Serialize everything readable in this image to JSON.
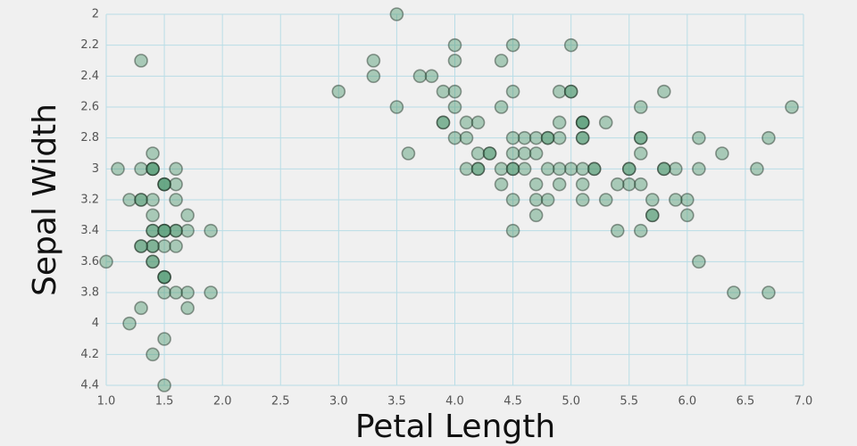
{
  "chart_data": {
    "type": "scatter",
    "x_label": "Petal Length",
    "y_label": "Sepal Width",
    "xlim": [
      1,
      7
    ],
    "ylim": [
      2,
      4.4
    ],
    "y_inverted": true,
    "grid": true,
    "xticks": [
      {
        "value": 1,
        "label": "1.0"
      },
      {
        "value": 1.5,
        "label": "1.5"
      },
      {
        "value": 2,
        "label": "2.0"
      },
      {
        "value": 2.5,
        "label": "2.5"
      },
      {
        "value": 3,
        "label": "3.0"
      },
      {
        "value": 3.5,
        "label": "3.5"
      },
      {
        "value": 4,
        "label": "4.0"
      },
      {
        "value": 4.5,
        "label": "4.5"
      },
      {
        "value": 5,
        "label": "5.0"
      },
      {
        "value": 5.5,
        "label": "5.5"
      },
      {
        "value": 6,
        "label": "6.0"
      },
      {
        "value": 6.5,
        "label": "6.5"
      },
      {
        "value": 7,
        "label": "7.0"
      }
    ],
    "yticks": [
      2,
      2.2,
      2.4,
      2.6,
      2.8,
      3,
      3.2,
      3.4,
      3.6,
      3.8,
      4,
      4.2,
      4.4
    ],
    "color": "#4f9a72",
    "x": [
      1.4,
      1.4,
      1.3,
      1.5,
      1.4,
      1.7,
      1.4,
      1.5,
      1.4,
      1.5,
      1.5,
      1.6,
      1.4,
      1.1,
      1.2,
      1.5,
      1.3,
      1.4,
      1.7,
      1.5,
      1.7,
      1.5,
      1.0,
      1.7,
      1.9,
      1.6,
      1.6,
      1.5,
      1.4,
      1.6,
      1.6,
      1.5,
      1.5,
      1.4,
      1.5,
      1.2,
      1.3,
      1.4,
      1.3,
      1.5,
      1.3,
      1.3,
      1.3,
      1.6,
      1.9,
      1.4,
      1.6,
      1.4,
      1.5,
      1.4,
      4.7,
      4.5,
      4.9,
      4.0,
      4.6,
      4.5,
      4.7,
      3.3,
      4.6,
      3.9,
      3.5,
      4.2,
      4.0,
      4.7,
      3.6,
      4.4,
      4.5,
      4.1,
      4.5,
      3.9,
      4.8,
      4.0,
      4.9,
      4.7,
      4.3,
      4.4,
      4.8,
      5.0,
      4.5,
      3.5,
      3.8,
      3.7,
      3.9,
      5.1,
      4.5,
      4.5,
      4.7,
      4.4,
      4.1,
      4.0,
      4.4,
      4.6,
      4.0,
      3.3,
      4.2,
      4.2,
      4.2,
      4.3,
      3.0,
      4.1,
      6.0,
      5.1,
      5.9,
      5.6,
      5.8,
      6.6,
      4.5,
      6.3,
      5.8,
      6.1,
      5.1,
      5.3,
      5.5,
      5.0,
      5.1,
      5.3,
      5.5,
      6.7,
      6.9,
      5.0,
      5.7,
      4.9,
      6.7,
      4.9,
      5.7,
      6.0,
      4.8,
      4.9,
      5.6,
      5.8,
      6.1,
      6.4,
      5.6,
      5.1,
      5.6,
      6.1,
      5.6,
      5.5,
      4.8,
      5.4,
      5.6,
      5.1,
      5.1,
      5.9,
      5.7,
      5.2,
      5.0,
      5.2,
      5.4,
      5.1
    ],
    "y": [
      3.5,
      3.0,
      3.2,
      3.1,
      3.6,
      3.9,
      3.4,
      3.4,
      2.9,
      3.1,
      3.7,
      3.4,
      3.0,
      3.0,
      4.0,
      4.4,
      3.9,
      3.5,
      3.8,
      3.8,
      3.4,
      3.7,
      3.6,
      3.3,
      3.4,
      3.0,
      3.4,
      3.5,
      3.4,
      3.2,
      3.1,
      3.4,
      4.1,
      4.2,
      3.1,
      3.2,
      3.5,
      3.6,
      3.0,
      3.4,
      3.5,
      2.3,
      3.2,
      3.5,
      3.8,
      3.0,
      3.8,
      3.2,
      3.7,
      3.3,
      3.2,
      3.2,
      3.1,
      2.3,
      2.8,
      2.8,
      3.3,
      2.4,
      2.9,
      2.7,
      2.0,
      3.0,
      2.2,
      2.9,
      2.9,
      3.1,
      3.0,
      2.7,
      2.2,
      2.5,
      3.2,
      2.8,
      2.5,
      2.8,
      2.9,
      3.0,
      2.8,
      3.0,
      2.9,
      2.6,
      2.4,
      2.4,
      2.7,
      2.7,
      3.0,
      3.4,
      3.1,
      2.3,
      3.0,
      2.5,
      2.6,
      3.0,
      2.6,
      2.3,
      2.7,
      3.0,
      2.9,
      2.9,
      2.5,
      2.8,
      3.3,
      2.7,
      3.0,
      2.9,
      3.0,
      3.0,
      2.5,
      2.9,
      2.5,
      3.6,
      3.2,
      2.7,
      3.0,
      2.5,
      2.8,
      3.2,
      3.0,
      3.8,
      2.6,
      2.2,
      3.2,
      2.8,
      2.8,
      2.7,
      3.3,
      3.2,
      2.8,
      3.0,
      2.8,
      3.0,
      2.8,
      3.8,
      2.8,
      2.8,
      2.6,
      3.0,
      3.4,
      3.1,
      3.0,
      3.1,
      3.1,
      3.1,
      2.7,
      3.2,
      3.3,
      3.0,
      2.5,
      3.0,
      3.4,
      3.0
    ]
  }
}
